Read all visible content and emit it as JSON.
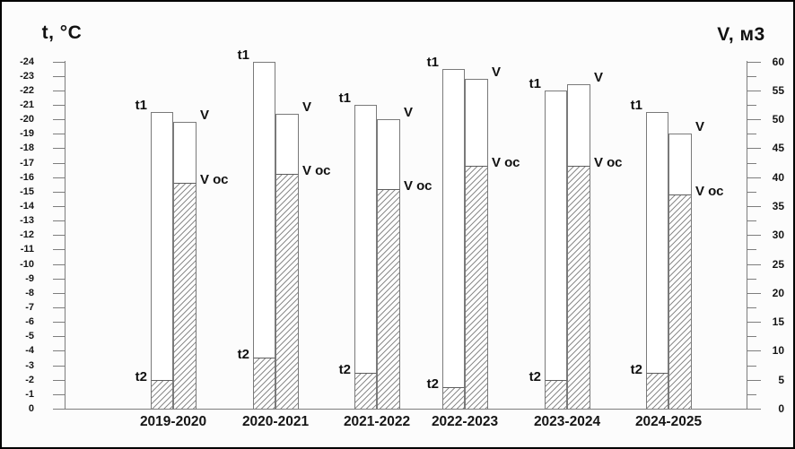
{
  "chart_data": {
    "type": "bar",
    "title": "",
    "categories": [
      "2019-2020",
      "2020-2021",
      "2021-2022",
      "2022-2023",
      "2023-2024",
      "2024-2025"
    ],
    "left_axis": {
      "label": "t, °C",
      "min": -24,
      "max": 0,
      "tick_step": 1
    },
    "right_axis": {
      "label": "V, м3",
      "min": 0,
      "max": 60,
      "tick_step": 5,
      "minor_tick_step": 2.5
    },
    "series": [
      {
        "name": "t1",
        "axis": "left",
        "style": "open",
        "values": [
          -20.5,
          -24,
          -21,
          -23.5,
          -22,
          -20.5
        ]
      },
      {
        "name": "t2",
        "axis": "left",
        "style": "hatched",
        "values": [
          -2,
          -3.5,
          -2.5,
          -1.5,
          -2,
          -2.5
        ]
      },
      {
        "name": "V",
        "axis": "right",
        "style": "open",
        "values": [
          49.5,
          51,
          50,
          57,
          56,
          47.5
        ]
      },
      {
        "name": "V ос",
        "axis": "right",
        "style": "hatched",
        "values": [
          39,
          40.5,
          38,
          42,
          42,
          37
        ]
      }
    ],
    "legend_position": "none",
    "grid": false,
    "bar_structure": "each category: temperature bar (t1 outline with hatched t2 base) beside volume bar (V outline with hatched V ос base); labels drawn next to bar tops"
  },
  "colors": {
    "frame_border": "#000000",
    "background": "#fcfcfc",
    "axis_line": "#7d7d7d",
    "bar_outline": "#7a7a7a",
    "hatch_line": "#8c8c8c",
    "text": "#111111"
  }
}
